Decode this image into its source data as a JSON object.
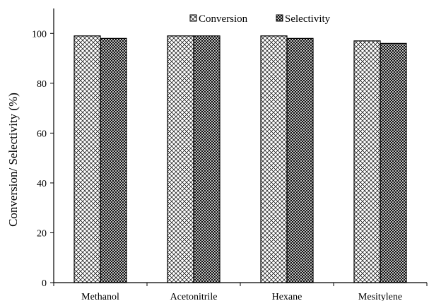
{
  "chart_data": {
    "type": "bar",
    "categories": [
      "Methanol",
      "Acetonitrile",
      "Hexane",
      "Mesitylene"
    ],
    "series": [
      {
        "name": "Conversion",
        "values": [
          99,
          99,
          99,
          97
        ]
      },
      {
        "name": "Selectivity",
        "values": [
          98,
          99,
          98,
          96
        ]
      }
    ],
    "title": "",
    "xlabel": "",
    "ylabel": "Conversion/ Selectivity (%)",
    "ylim": [
      0,
      110
    ],
    "yticks": [
      0,
      20,
      40,
      60,
      80,
      100
    ],
    "grid": false,
    "legend_position": "top-center",
    "patterns": [
      "crosshatch-light",
      "crosshatch-dense"
    ],
    "colors": {
      "axis": "#000000",
      "bar_fill": "#ffffff",
      "hatch": "#000000"
    }
  }
}
